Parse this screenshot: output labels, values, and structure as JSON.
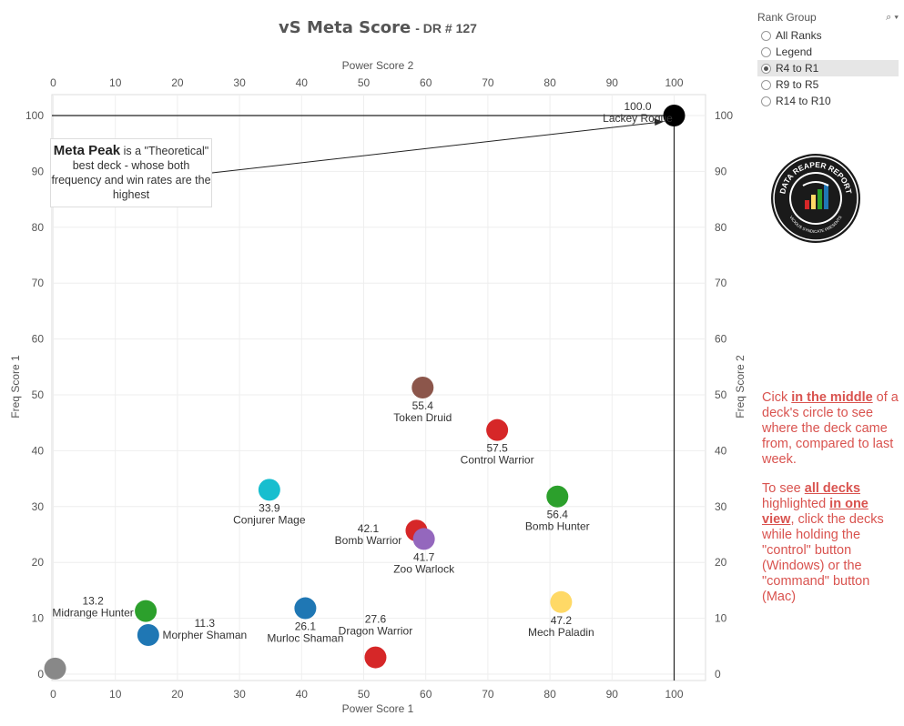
{
  "title": {
    "main": "vS Meta Score",
    "sub": "DR # 127"
  },
  "rank_group": {
    "label": "Rank Group",
    "options": [
      {
        "label": "All Ranks",
        "selected": false
      },
      {
        "label": "Legend",
        "selected": false
      },
      {
        "label": "R4 to R1",
        "selected": true
      },
      {
        "label": "R9 to R5",
        "selected": false
      },
      {
        "label": "R14 to R10",
        "selected": false
      }
    ]
  },
  "logo": {
    "text_top": "DATA REAPER REPORT",
    "text_bottom": "VICIOUS SYNDICATE PRESENTS"
  },
  "annotation": {
    "bold": "Meta Peak",
    "text": " is a \"Theoretical\" best deck - whose both frequency and win rates are the highest"
  },
  "notes": {
    "p1_pre": "Cick ",
    "p1_bold": "in the middle",
    "p1_post": " of a deck's circle to see where the deck came from, compared to last week.",
    "p2_pre": "To see ",
    "p2_bold1": "all decks ",
    "p2_mid": " highlighted ",
    "p2_bold2": "in one view",
    "p2_post": ", click the decks while holding the \"control\" button (Windows) or the \"command\" button (Mac)"
  },
  "chart_data": {
    "type": "scatter",
    "title": "vS Meta Score - DR # 127",
    "xlabel": "Power Score 1",
    "xlabel_top": "Power Score 2",
    "ylabel": "Freq Score 1",
    "ylabel_right": "Freq Score 2",
    "xlim": [
      0,
      105
    ],
    "ylim": [
      0,
      105
    ],
    "xticks": [
      0,
      10,
      20,
      30,
      40,
      50,
      60,
      70,
      80,
      90,
      100
    ],
    "yticks": [
      0,
      10,
      20,
      30,
      40,
      50,
      60,
      70,
      80,
      90,
      100
    ],
    "grid": true,
    "meta_peak": {
      "x": 100,
      "y": 100
    },
    "points": [
      {
        "name": "Lackey Rogue",
        "score": "100.0",
        "x": 100,
        "y": 100,
        "color": "#000000"
      },
      {
        "name": "Token Druid",
        "score": "55.4",
        "x": 59.5,
        "y": 51.3,
        "color": "#8c564b"
      },
      {
        "name": "Control Warrior",
        "score": "57.5",
        "x": 71.5,
        "y": 43.7,
        "color": "#d62728"
      },
      {
        "name": "Conjurer Mage",
        "score": "33.9",
        "x": 34.8,
        "y": 33.0,
        "color": "#17becf"
      },
      {
        "name": "Bomb Hunter",
        "score": "56.4",
        "x": 81.2,
        "y": 31.8,
        "color": "#2ca02c"
      },
      {
        "name": "Bomb Warrior",
        "score": "42.1",
        "x": 58.5,
        "y": 25.7,
        "color": "#d62728"
      },
      {
        "name": "Zoo Warlock",
        "score": "41.7",
        "x": 59.7,
        "y": 24.2,
        "color": "#9467bd"
      },
      {
        "name": "Mech Paladin",
        "score": "47.2",
        "x": 81.8,
        "y": 12.9,
        "color": "#ffd966"
      },
      {
        "name": "Murloc Shaman",
        "score": "26.1",
        "x": 40.6,
        "y": 11.8,
        "color": "#1f77b4"
      },
      {
        "name": "Midrange Hunter",
        "score": "13.2",
        "x": 14.9,
        "y": 11.3,
        "color": "#2ca02c"
      },
      {
        "name": "Morpher Shaman",
        "score": "11.3",
        "x": 15.3,
        "y": 7.0,
        "color": "#1f77b4"
      },
      {
        "name": "Dragon Warrior",
        "score": "27.6",
        "x": 51.9,
        "y": 3.0,
        "color": "#d62728"
      },
      {
        "name": "",
        "score": "",
        "x": 0.3,
        "y": 1.0,
        "color": "#888888"
      }
    ]
  }
}
